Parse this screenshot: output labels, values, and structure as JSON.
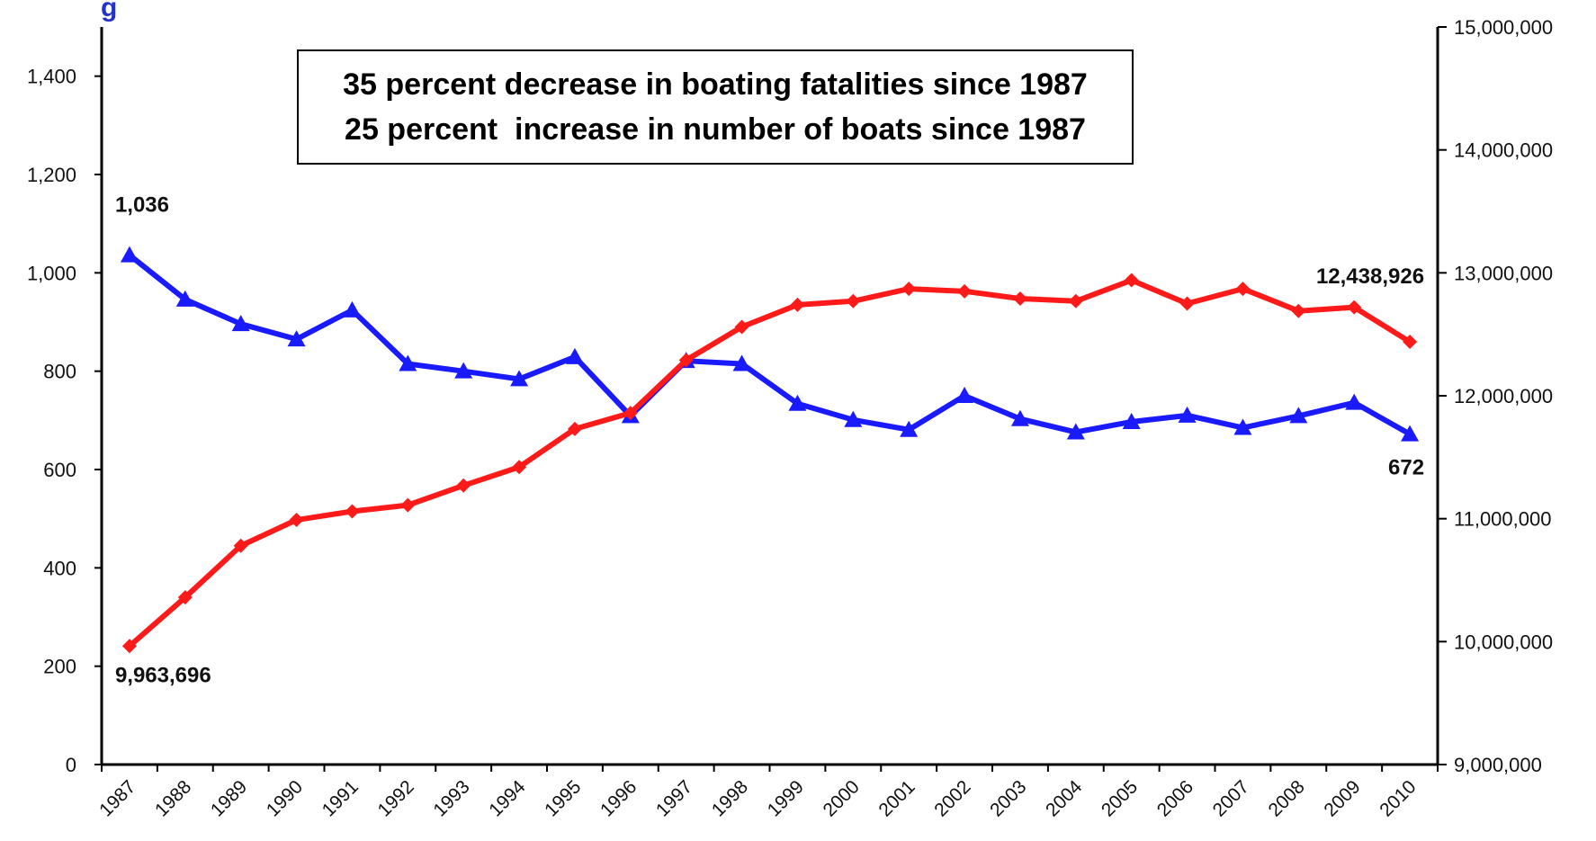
{
  "chart_data": {
    "type": "line",
    "title_fragment": "g",
    "annotations": [
      "35 percent decrease in boating fatalities since 1987",
      "25 percent  increase in number of boats since 1987"
    ],
    "x": [
      "1987",
      "1988",
      "1989",
      "1990",
      "1991",
      "1992",
      "1993",
      "1994",
      "1995",
      "1996",
      "1997",
      "1998",
      "1999",
      "2000",
      "2001",
      "2002",
      "2003",
      "2004",
      "2005",
      "2006",
      "2007",
      "2008",
      "2009",
      "2010"
    ],
    "y_left": {
      "ylim": [
        0,
        1500
      ],
      "ticks": [
        0,
        200,
        400,
        600,
        800,
        1000,
        1200,
        1400
      ],
      "tick_labels": [
        "0",
        "200",
        "400",
        "600",
        "800",
        "1,000",
        "1,200",
        "1,400"
      ]
    },
    "y_right": {
      "ylim": [
        9000000,
        15000000
      ],
      "ticks": [
        9000000,
        10000000,
        11000000,
        12000000,
        13000000,
        14000000,
        15000000
      ],
      "tick_labels": [
        "9,000,000",
        "10,000,000",
        "11,000,000",
        "12,000,000",
        "13,000,000",
        "14,000,000",
        "15,000,000"
      ]
    },
    "series": [
      {
        "axis": "left",
        "color": "#1a1aff",
        "marker": "triangle",
        "values": [
          1036,
          946,
          896,
          865,
          924,
          815,
          800,
          784,
          829,
          709,
          821,
          815,
          734,
          701,
          681,
          750,
          703,
          676,
          697,
          710,
          685,
          709,
          736,
          672
        ]
      },
      {
        "axis": "right",
        "color": "#ff1a1a",
        "marker": "diamond",
        "values": [
          9963696,
          10360000,
          10780000,
          10990000,
          11060000,
          11110000,
          11270000,
          11420000,
          11730000,
          11860000,
          12290000,
          12560000,
          12740000,
          12770000,
          12870000,
          12850000,
          12790000,
          12770000,
          12940000,
          12750000,
          12870000,
          12690000,
          12720000,
          12438926
        ]
      }
    ],
    "data_labels": [
      {
        "series": 0,
        "index": 0,
        "text": "1,036",
        "placement": "above"
      },
      {
        "series": 0,
        "index": 23,
        "text": "672",
        "placement": "below"
      },
      {
        "series": 1,
        "index": 0,
        "text": "9,963,696",
        "placement": "below"
      },
      {
        "series": 1,
        "index": 23,
        "text": "12,438,926",
        "placement": "above"
      }
    ]
  }
}
